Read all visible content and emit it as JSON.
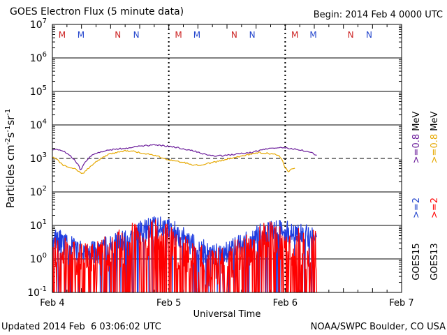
{
  "header": {
    "title": "GOES Electron Flux (5 minute data)",
    "begin": "Begin: 2014 Feb 4 0000 UTC"
  },
  "footer": {
    "updated": "Updated 2014 Feb  6 03:06:02 UTC",
    "credit": "NOAA/SWPC Boulder, CO USA"
  },
  "chart_data": {
    "type": "line",
    "title": "GOES Electron Flux (5 minute data)",
    "xlabel": "Universal Time",
    "ylabel": "Particles cm-2s-1sr-1",
    "yscale": "log",
    "ylim": [
      0.1,
      10000000
    ],
    "xlim": [
      0,
      72
    ],
    "x_unit": "hours since 2014 Feb 4 0000 UTC",
    "x_ticks": [
      {
        "x": 0,
        "label": "Feb 4"
      },
      {
        "x": 24,
        "label": "Feb 5"
      },
      {
        "x": 48,
        "label": "Feb 6"
      },
      {
        "x": 72,
        "label": "Feb 7"
      }
    ],
    "y_ticks": [
      {
        "value": 0.1,
        "mant": "10",
        "exp": "-1"
      },
      {
        "value": 1,
        "mant": "10",
        "exp": "0"
      },
      {
        "value": 10,
        "mant": "10",
        "exp": "1"
      },
      {
        "value": 100,
        "mant": "10",
        "exp": "2"
      },
      {
        "value": 1000,
        "mant": "10",
        "exp": "3"
      },
      {
        "value": 10000,
        "mant": "10",
        "exp": "4"
      },
      {
        "value": 100000,
        "mant": "10",
        "exp": "5"
      },
      {
        "value": 1000000,
        "mant": "10",
        "exp": "6"
      },
      {
        "value": 10000000,
        "mant": "10",
        "exp": "7"
      }
    ],
    "grid": true,
    "threshold": {
      "value": 1000,
      "style": "dashed"
    },
    "day_markers": [
      24,
      48
    ],
    "mn_markers": [
      {
        "x": 2.0,
        "label": "M",
        "color": "#cc2222"
      },
      {
        "x": 5.9,
        "label": "M",
        "color": "#2244cc"
      },
      {
        "x": 13.5,
        "label": "N",
        "color": "#cc2222"
      },
      {
        "x": 17.3,
        "label": "N",
        "color": "#2244cc"
      },
      {
        "x": 26.0,
        "label": "M",
        "color": "#cc2222"
      },
      {
        "x": 29.8,
        "label": "M",
        "color": "#2244cc"
      },
      {
        "x": 37.5,
        "label": "N",
        "color": "#cc2222"
      },
      {
        "x": 41.2,
        "label": "N",
        "color": "#2244cc"
      },
      {
        "x": 50.0,
        "label": "M",
        "color": "#cc2222"
      },
      {
        "x": 53.8,
        "label": "M",
        "color": "#2244cc"
      },
      {
        "x": 61.5,
        "label": "N",
        "color": "#cc2222"
      },
      {
        "x": 65.3,
        "label": "N",
        "color": "#2244cc"
      }
    ],
    "legend": {
      "placement": "right",
      "groups": [
        {
          "sat": "GOES13",
          "sat_color": "#000000",
          "entries": [
            {
              "text": ">=2",
              "color": "#ff0000"
            },
            {
              "text": ">=0.8",
              "color": "#e6a800"
            }
          ],
          "unit": "MeV"
        },
        {
          "sat": "GOES15",
          "sat_color": "#000000",
          "entries": [
            {
              "text": ">=2",
              "color": "#2244cc"
            },
            {
              "text": ">=0.8",
              "color": "#6a1b9a"
            }
          ],
          "unit": "MeV"
        }
      ]
    },
    "series": [
      {
        "name": "GOES15 >=0.8 MeV",
        "color": "#6a1b9a",
        "kind": "smooth",
        "points": [
          [
            0,
            1900
          ],
          [
            2,
            1700
          ],
          [
            3.5,
            1300
          ],
          [
            4.5,
            900
          ],
          [
            5.3,
            650
          ],
          [
            5.8,
            450
          ],
          [
            6.8,
            800
          ],
          [
            8,
            1200
          ],
          [
            9.5,
            1500
          ],
          [
            11,
            1700
          ],
          [
            13,
            1900
          ],
          [
            15,
            2000
          ],
          [
            17,
            2200
          ],
          [
            19,
            2400
          ],
          [
            21,
            2500
          ],
          [
            23,
            2400
          ],
          [
            25,
            2200
          ],
          [
            27,
            1900
          ],
          [
            29,
            1700
          ],
          [
            31,
            1400
          ],
          [
            33,
            1200
          ],
          [
            35,
            1200
          ],
          [
            37,
            1300
          ],
          [
            39,
            1400
          ],
          [
            41,
            1500
          ],
          [
            43,
            1800
          ],
          [
            45,
            2000
          ],
          [
            47,
            2100
          ],
          [
            49,
            2000
          ],
          [
            51,
            1800
          ],
          [
            53,
            1600
          ],
          [
            54.5,
            1200
          ]
        ]
      },
      {
        "name": "GOES13 >=0.8 MeV",
        "color": "#e6a800",
        "kind": "smooth",
        "points": [
          [
            0,
            1100
          ],
          [
            1,
            950
          ],
          [
            2,
            650
          ],
          [
            3,
            560
          ],
          [
            4,
            520
          ],
          [
            5,
            460
          ],
          [
            5.8,
            360
          ],
          [
            6.5,
            380
          ],
          [
            7.5,
            520
          ],
          [
            8.5,
            700
          ],
          [
            10,
            1000
          ],
          [
            11.5,
            1300
          ],
          [
            13,
            1500
          ],
          [
            15,
            1700
          ],
          [
            17,
            1600
          ],
          [
            19,
            1400
          ],
          [
            21,
            1250
          ],
          [
            23,
            1000
          ],
          [
            25,
            850
          ],
          [
            27,
            760
          ],
          [
            29,
            650
          ],
          [
            30.5,
            640
          ],
          [
            32,
            700
          ],
          [
            34,
            800
          ],
          [
            36,
            950
          ],
          [
            38,
            1100
          ],
          [
            40,
            1250
          ],
          [
            41.5,
            1400
          ],
          [
            42.5,
            1500
          ],
          [
            44,
            1450
          ],
          [
            46,
            1300
          ],
          [
            47,
            1100
          ],
          [
            47.5,
            800
          ],
          [
            48,
            520
          ],
          [
            48.7,
            400
          ],
          [
            49.5,
            500
          ],
          [
            50,
            520
          ]
        ]
      },
      {
        "name": "GOES15 >=2 MeV",
        "color": "#1f3de0",
        "kind": "noisy",
        "base": [
          [
            0,
            5
          ],
          [
            3,
            2.5
          ],
          [
            6,
            1.5
          ],
          [
            9,
            1.5
          ],
          [
            12,
            2.5
          ],
          [
            15,
            3.5
          ],
          [
            18,
            6
          ],
          [
            21,
            9
          ],
          [
            24,
            8
          ],
          [
            27,
            4
          ],
          [
            30,
            2
          ],
          [
            33,
            1.5
          ],
          [
            36,
            1.5
          ],
          [
            39,
            2.5
          ],
          [
            42,
            5
          ],
          [
            45,
            7
          ],
          [
            48,
            7
          ],
          [
            51,
            5
          ],
          [
            54.5,
            4.5
          ]
        ],
        "amp": 0.35,
        "dip_prob": 0.12,
        "seed": 11
      },
      {
        "name": "GOES13 >=2 MeV",
        "color": "#ff0000",
        "kind": "noisy",
        "base": [
          [
            0,
            2
          ],
          [
            3,
            1
          ],
          [
            6,
            0.7
          ],
          [
            9,
            0.8
          ],
          [
            12,
            1.5
          ],
          [
            15,
            2.5
          ],
          [
            18,
            3.5
          ],
          [
            21,
            4
          ],
          [
            24,
            3
          ],
          [
            27,
            1.5
          ],
          [
            30,
            0.7
          ],
          [
            33,
            0.5
          ],
          [
            36,
            0.8
          ],
          [
            39,
            1.5
          ],
          [
            42,
            2.5
          ],
          [
            45,
            3.5
          ],
          [
            48,
            3
          ],
          [
            51,
            2
          ],
          [
            54.5,
            1.8
          ]
        ],
        "amp": 0.6,
        "dip_prob": 0.35,
        "seed": 23
      }
    ]
  }
}
